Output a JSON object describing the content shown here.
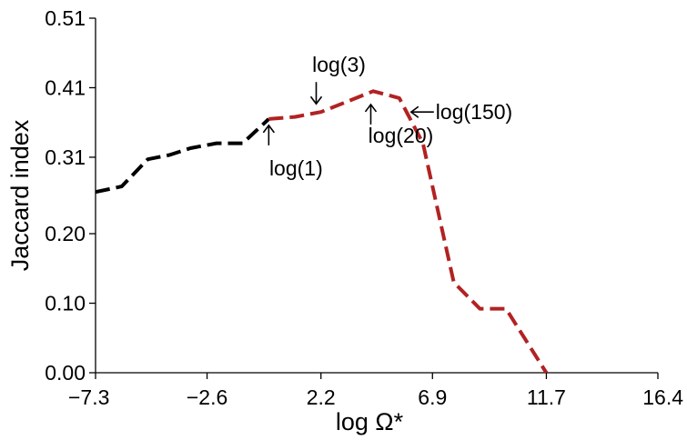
{
  "chart_data": {
    "type": "line",
    "title": "",
    "xlabel": "log Ω*",
    "ylabel": "Jaccard index",
    "xlim": [
      -7.3,
      16.4
    ],
    "ylim": [
      0.0,
      0.51
    ],
    "x_ticks": [
      {
        "value": -7.3,
        "label": "−7.3"
      },
      {
        "value": -2.6,
        "label": "−2.6"
      },
      {
        "value": 2.2,
        "label": "2.2"
      },
      {
        "value": 6.9,
        "label": "6.9"
      },
      {
        "value": 11.7,
        "label": "11.7"
      },
      {
        "value": 16.4,
        "label": "16.4"
      }
    ],
    "y_ticks": [
      {
        "value": 0.0,
        "label": "0.00"
      },
      {
        "value": 0.1,
        "label": "0.10"
      },
      {
        "value": 0.2,
        "label": "0.20"
      },
      {
        "value": 0.31,
        "label": "0.31"
      },
      {
        "value": 0.41,
        "label": "0.41"
      },
      {
        "value": 0.51,
        "label": "0.51"
      }
    ],
    "grid": false,
    "series": [
      {
        "name": "black segment",
        "color": "#000000",
        "points": [
          {
            "x": -7.3,
            "y": 0.26
          },
          {
            "x": -6.2,
            "y": 0.268
          },
          {
            "x": -5.1,
            "y": 0.307
          },
          {
            "x": -4.2,
            "y": 0.313
          },
          {
            "x": -3.3,
            "y": 0.323
          },
          {
            "x": -2.2,
            "y": 0.33
          },
          {
            "x": -1.1,
            "y": 0.33
          },
          {
            "x": 0.0,
            "y": 0.365
          }
        ]
      },
      {
        "name": "red segment",
        "color": "#b22222",
        "points": [
          {
            "x": 0.0,
            "y": 0.365
          },
          {
            "x": 1.1,
            "y": 0.368
          },
          {
            "x": 2.2,
            "y": 0.375
          },
          {
            "x": 3.3,
            "y": 0.39
          },
          {
            "x": 4.4,
            "y": 0.405
          },
          {
            "x": 5.5,
            "y": 0.395
          },
          {
            "x": 6.5,
            "y": 0.33
          },
          {
            "x": 7.8,
            "y": 0.13
          },
          {
            "x": 8.9,
            "y": 0.092
          },
          {
            "x": 10.0,
            "y": 0.092
          },
          {
            "x": 11.7,
            "y": 0.0
          }
        ]
      }
    ],
    "annotations": [
      {
        "text": "log(1)",
        "x": 0.0,
        "y": 0.365,
        "arrow": "up",
        "label_position": "below"
      },
      {
        "text": "log(3)",
        "x": 2.0,
        "y": 0.375,
        "arrow": "down",
        "label_position": "above"
      },
      {
        "text": "log(20)",
        "x": 4.3,
        "y": 0.395,
        "arrow": "up",
        "label_position": "below"
      },
      {
        "text": "log(150)",
        "x": 6.0,
        "y": 0.375,
        "arrow": "left",
        "label_position": "right"
      }
    ]
  }
}
